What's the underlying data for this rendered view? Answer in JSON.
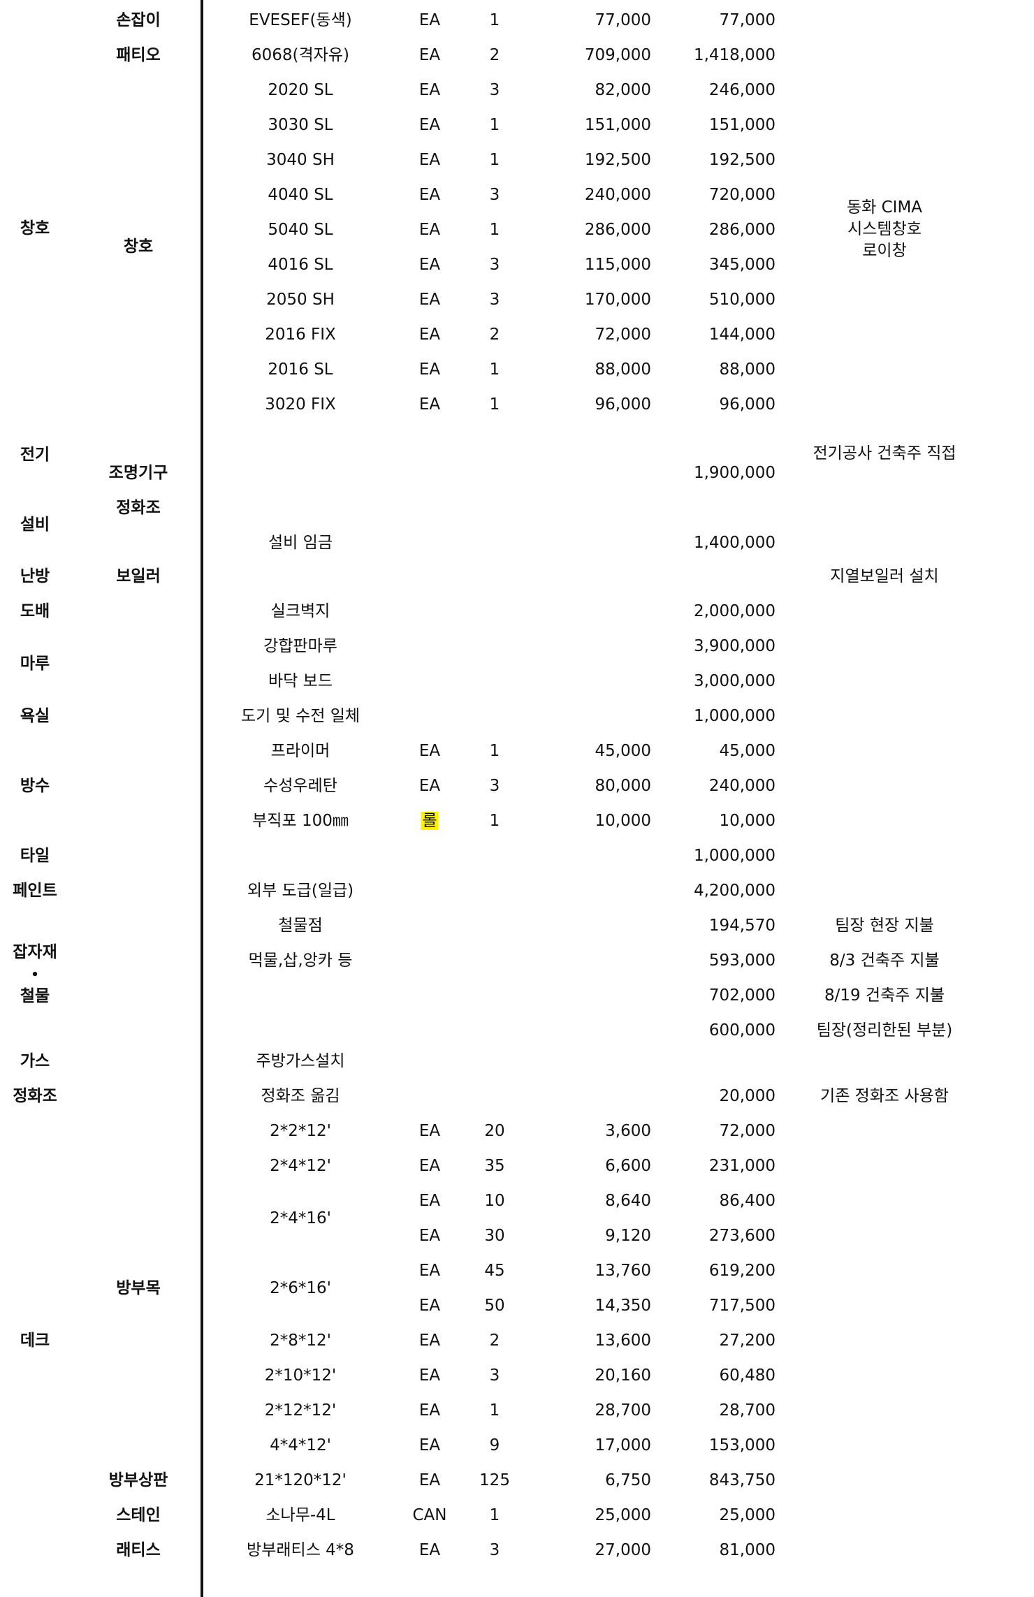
{
  "categories": {
    "window": "창호",
    "electric": "전기",
    "facility": "설비",
    "heating": "난방",
    "wallpaper": "도배",
    "floor": "마루",
    "bath": "욕실",
    "waterproof": "방수",
    "tile": "타일",
    "paint": "페인트",
    "misc_line1": "잡자재",
    "misc_dot": "•",
    "misc_line2": "철물",
    "gas": "가스",
    "septic": "정화조",
    "deck": "데크"
  },
  "subcategories": {
    "handle": "손잡이",
    "patio": "패티오",
    "window": "창호",
    "lighting": "조명기구",
    "septic": "정화조",
    "boiler": "보일러",
    "timber": "방부목",
    "top_board": "방부상판",
    "stain": "스테인",
    "lattice": "래티스"
  },
  "rows": [
    {
      "item": "EVESEF(동색)",
      "unit": "EA",
      "qty": "1",
      "price": "77,000",
      "amount": "77,000"
    },
    {
      "item": "6068(격자유)",
      "unit": "EA",
      "qty": "2",
      "price": "709,000",
      "amount": "1,418,000"
    },
    {
      "item": "2020 SL",
      "unit": "EA",
      "qty": "3",
      "price": "82,000",
      "amount": "246,000"
    },
    {
      "item": "3030 SL",
      "unit": "EA",
      "qty": "1",
      "price": "151,000",
      "amount": "151,000"
    },
    {
      "item": "3040 SH",
      "unit": "EA",
      "qty": "1",
      "price": "192,500",
      "amount": "192,500"
    },
    {
      "item": "4040 SL",
      "unit": "EA",
      "qty": "3",
      "price": "240,000",
      "amount": "720,000"
    },
    {
      "item": "5040 SL",
      "unit": "EA",
      "qty": "1",
      "price": "286,000",
      "amount": "286,000"
    },
    {
      "item": "4016 SL",
      "unit": "EA",
      "qty": "3",
      "price": "115,000",
      "amount": "345,000"
    },
    {
      "item": "2050 SH",
      "unit": "EA",
      "qty": "3",
      "price": "170,000",
      "amount": "510,000"
    },
    {
      "item": "2016 FIX",
      "unit": "EA",
      "qty": "2",
      "price": "72,000",
      "amount": "144,000"
    },
    {
      "item": "2016 SL",
      "unit": "EA",
      "qty": "1",
      "price": "88,000",
      "amount": "88,000"
    },
    {
      "item": "3020 FIX",
      "unit": "EA",
      "qty": "1",
      "price": "96,000",
      "amount": "96,000"
    },
    {
      "item": "",
      "unit": "",
      "qty": "",
      "price": "",
      "amount": "1,900,000"
    },
    {
      "item": "설비 임금",
      "unit": "",
      "qty": "",
      "price": "",
      "amount": "1,400,000"
    },
    {
      "item": "실크벽지",
      "unit": "",
      "qty": "",
      "price": "",
      "amount": "2,000,000"
    },
    {
      "item": "강합판마루",
      "unit": "",
      "qty": "",
      "price": "",
      "amount": "3,900,000"
    },
    {
      "item": "바닥 보드",
      "unit": "",
      "qty": "",
      "price": "",
      "amount": "3,000,000"
    },
    {
      "item": "도기 및 수전 일체",
      "unit": "",
      "qty": "",
      "price": "",
      "amount": "1,000,000"
    },
    {
      "item": "프라이머",
      "unit": "EA",
      "qty": "1",
      "price": "45,000",
      "amount": "45,000"
    },
    {
      "item": "수성우레탄",
      "unit": "EA",
      "qty": "3",
      "price": "80,000",
      "amount": "240,000"
    },
    {
      "item": "부직포 100㎜",
      "unit": "롤",
      "qty": "1",
      "price": "10,000",
      "amount": "10,000"
    },
    {
      "item": "",
      "unit": "",
      "qty": "",
      "price": "",
      "amount": "1,000,000"
    },
    {
      "item": "외부 도급(일급)",
      "unit": "",
      "qty": "",
      "price": "",
      "amount": "4,200,000"
    },
    {
      "item": "철물점",
      "unit": "",
      "qty": "",
      "price": "",
      "amount": "194,570"
    },
    {
      "item": "먹물,삽,앙카 등",
      "unit": "",
      "qty": "",
      "price": "",
      "amount": "593,000"
    },
    {
      "item": "",
      "unit": "",
      "qty": "",
      "price": "",
      "amount": "702,000"
    },
    {
      "item": "",
      "unit": "",
      "qty": "",
      "price": "",
      "amount": "600,000"
    },
    {
      "item": "주방가스설치",
      "unit": "",
      "qty": "",
      "price": "",
      "amount": ""
    },
    {
      "item": "정화조 옮김",
      "unit": "",
      "qty": "",
      "price": "",
      "amount": "20,000"
    },
    {
      "item": "2*2*12'",
      "unit": "EA",
      "qty": "20",
      "price": "3,600",
      "amount": "72,000"
    },
    {
      "item": "2*4*12'",
      "unit": "EA",
      "qty": "35",
      "price": "6,600",
      "amount": "231,000"
    },
    {
      "item": "",
      "unit": "EA",
      "qty": "10",
      "price": "8,640",
      "amount": "86,400"
    },
    {
      "item": "",
      "unit": "EA",
      "qty": "30",
      "price": "9,120",
      "amount": "273,600"
    },
    {
      "item": "",
      "unit": "EA",
      "qty": "45",
      "price": "13,760",
      "amount": "619,200"
    },
    {
      "item": "",
      "unit": "EA",
      "qty": "50",
      "price": "14,350",
      "amount": "717,500"
    },
    {
      "item": "2*8*12'",
      "unit": "EA",
      "qty": "2",
      "price": "13,600",
      "amount": "27,200"
    },
    {
      "item": "2*10*12'",
      "unit": "EA",
      "qty": "3",
      "price": "20,160",
      "amount": "60,480"
    },
    {
      "item": "2*12*12'",
      "unit": "EA",
      "qty": "1",
      "price": "28,700",
      "amount": "28,700"
    },
    {
      "item": "4*4*12'",
      "unit": "EA",
      "qty": "9",
      "price": "17,000",
      "amount": "153,000"
    },
    {
      "item": "21*120*12'",
      "unit": "EA",
      "qty": "125",
      "price": "6,750",
      "amount": "843,750"
    },
    {
      "item": "소나무-4L",
      "unit": "CAN",
      "qty": "1",
      "price": "25,000",
      "amount": "25,000"
    },
    {
      "item": "방부래티스 4*8",
      "unit": "EA",
      "qty": "3",
      "price": "27,000",
      "amount": "81,000"
    }
  ],
  "merged_items": {
    "timber_2x4x16": "2*4*16'",
    "timber_2x6x16": "2*6*16'"
  },
  "notes": {
    "window_line1": "동화 CIMA",
    "window_line2": "시스템창호",
    "window_line3": "로이창",
    "electric": "전기공사 건축주 직접",
    "boiler": "지열보일러 설치",
    "hardware_team": "팀장 현장 지불",
    "misc_0803": "8/3 건축주 지불",
    "misc_0819": "8/19 건축주 지불",
    "misc_team": "팀장(정리한된 부분)",
    "septic": "기존 정화조 사용함"
  }
}
